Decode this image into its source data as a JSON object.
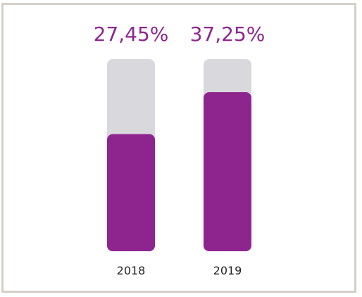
{
  "chart_data": {
    "type": "bar",
    "categories": [
      "2018",
      "2019"
    ],
    "values": [
      27.45,
      37.25
    ],
    "value_labels": [
      "27,45%",
      "37,25%"
    ],
    "title": "",
    "xlabel": "",
    "ylabel": "",
    "ylim": [
      0,
      45
    ],
    "grid": false,
    "colors": {
      "bar": "#8e258f",
      "track": "#d9d8dc",
      "label": "#8e258f",
      "frame": "#d4cfc8"
    }
  }
}
